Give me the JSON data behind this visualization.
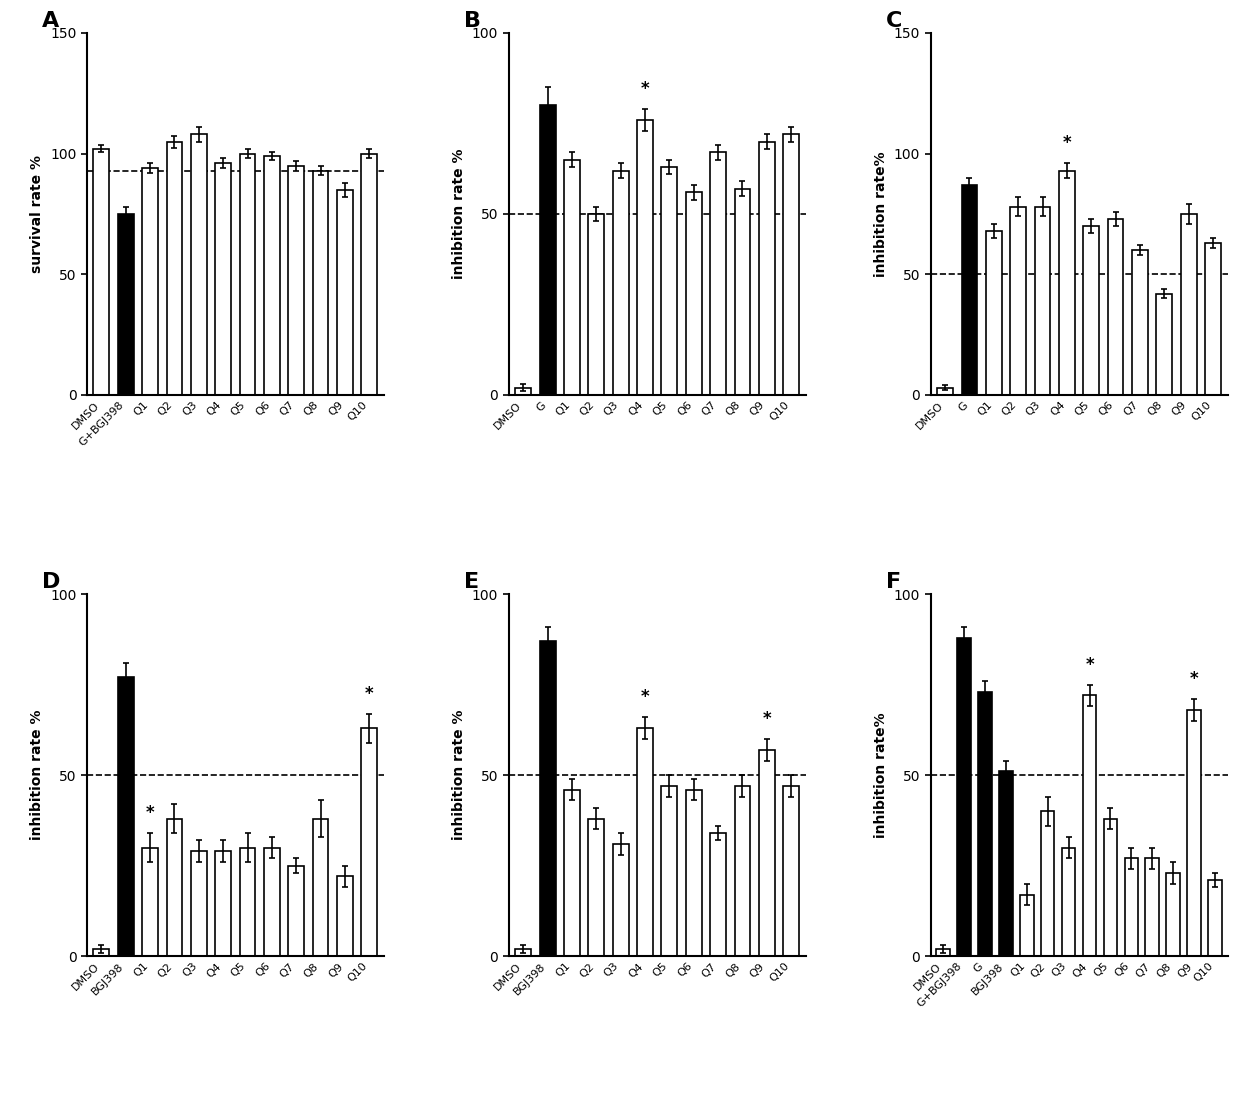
{
  "panels": {
    "A": {
      "label": "A",
      "ylabel": "survival rate %",
      "ylim": [
        0,
        150
      ],
      "yticks": [
        0,
        50,
        100,
        150
      ],
      "dashed_line": 93,
      "categories": [
        "DMSO",
        "G+BGJ398",
        "Q1",
        "Q2",
        "Q3",
        "Q4",
        "Q5",
        "Q6",
        "Q7",
        "Q8",
        "Q9",
        "Q10"
      ],
      "values": [
        102,
        75,
        94,
        105,
        108,
        96,
        100,
        99,
        95,
        93,
        85,
        100
      ],
      "errors": [
        1.5,
        3.0,
        2.0,
        2.5,
        3.0,
        2.0,
        2.0,
        1.5,
        2.0,
        2.0,
        3.0,
        2.0
      ],
      "colors": [
        "white",
        "black",
        "white",
        "white",
        "white",
        "white",
        "white",
        "white",
        "white",
        "white",
        "white",
        "white"
      ],
      "has_star": [
        false,
        false,
        false,
        false,
        false,
        false,
        false,
        false,
        false,
        false,
        false,
        false
      ]
    },
    "B": {
      "label": "B",
      "ylabel": "inhibition rate %",
      "ylim": [
        0,
        100
      ],
      "yticks": [
        0,
        50,
        100
      ],
      "dashed_line": 50,
      "categories": [
        "DMSO",
        "G",
        "Q1",
        "Q2",
        "Q3",
        "Q4",
        "Q5",
        "Q6",
        "Q7",
        "Q8",
        "Q9",
        "Q10"
      ],
      "values": [
        2,
        80,
        65,
        50,
        62,
        76,
        63,
        56,
        67,
        57,
        70,
        72
      ],
      "errors": [
        1.0,
        5.0,
        2.0,
        2.0,
        2.0,
        3.0,
        2.0,
        2.0,
        2.0,
        2.0,
        2.0,
        2.0
      ],
      "colors": [
        "white",
        "black",
        "white",
        "white",
        "white",
        "white",
        "white",
        "white",
        "white",
        "white",
        "white",
        "white"
      ],
      "has_star": [
        false,
        false,
        false,
        false,
        false,
        true,
        false,
        false,
        false,
        false,
        false,
        false
      ]
    },
    "C": {
      "label": "C",
      "ylabel": "inhibition rate%",
      "ylim": [
        0,
        150
      ],
      "yticks": [
        0,
        50,
        100,
        150
      ],
      "dashed_line": 50,
      "categories": [
        "DMSO",
        "G",
        "Q1",
        "Q2",
        "Q3",
        "Q4",
        "Q5",
        "Q6",
        "Q7",
        "Q8",
        "Q9",
        "Q10"
      ],
      "values": [
        3,
        87,
        68,
        78,
        78,
        93,
        70,
        73,
        60,
        42,
        75,
        63
      ],
      "errors": [
        1.0,
        3.0,
        3.0,
        4.0,
        4.0,
        3.0,
        3.0,
        3.0,
        2.0,
        2.0,
        4.0,
        2.0
      ],
      "colors": [
        "white",
        "black",
        "white",
        "white",
        "white",
        "white",
        "white",
        "white",
        "white",
        "white",
        "white",
        "white"
      ],
      "has_star": [
        false,
        false,
        false,
        false,
        false,
        true,
        false,
        false,
        false,
        false,
        false,
        false
      ]
    },
    "D": {
      "label": "D",
      "ylabel": "inhibition rate %",
      "ylim": [
        0,
        100
      ],
      "yticks": [
        0,
        50,
        100
      ],
      "dashed_line": 50,
      "categories": [
        "DMSO",
        "BGJ398",
        "Q1",
        "Q2",
        "Q3",
        "Q4",
        "Q5",
        "Q6",
        "Q7",
        "Q8",
        "Q9",
        "Q10"
      ],
      "values": [
        2,
        77,
        30,
        38,
        29,
        29,
        30,
        30,
        25,
        38,
        22,
        63
      ],
      "errors": [
        1.0,
        4.0,
        4.0,
        4.0,
        3.0,
        3.0,
        4.0,
        3.0,
        2.0,
        5.0,
        3.0,
        4.0
      ],
      "colors": [
        "white",
        "black",
        "white",
        "white",
        "white",
        "white",
        "white",
        "white",
        "white",
        "white",
        "white",
        "white"
      ],
      "has_star": [
        false,
        false,
        true,
        false,
        false,
        false,
        false,
        false,
        false,
        false,
        false,
        true
      ]
    },
    "E": {
      "label": "E",
      "ylabel": "inhibition rate %",
      "ylim": [
        0,
        100
      ],
      "yticks": [
        0,
        50,
        100
      ],
      "dashed_line": 50,
      "categories": [
        "DMSO",
        "BGJ398",
        "Q1",
        "Q2",
        "Q3",
        "Q4",
        "Q5",
        "Q6",
        "Q7",
        "Q8",
        "Q9",
        "Q10"
      ],
      "values": [
        2,
        87,
        46,
        38,
        31,
        63,
        47,
        46,
        34,
        47,
        57,
        47
      ],
      "errors": [
        1.0,
        4.0,
        3.0,
        3.0,
        3.0,
        3.0,
        3.0,
        3.0,
        2.0,
        3.0,
        3.0,
        3.0
      ],
      "colors": [
        "white",
        "black",
        "white",
        "white",
        "white",
        "white",
        "white",
        "white",
        "white",
        "white",
        "white",
        "white"
      ],
      "has_star": [
        false,
        false,
        false,
        false,
        false,
        true,
        false,
        false,
        false,
        false,
        true,
        false
      ]
    },
    "F": {
      "label": "F",
      "ylabel": "inhibition rate%",
      "ylim": [
        0,
        100
      ],
      "yticks": [
        0,
        50,
        100
      ],
      "dashed_line": 50,
      "categories": [
        "DMSO",
        "G+BGJ398",
        "G",
        "BGJ398",
        "Q1",
        "Q2",
        "Q3",
        "Q4",
        "Q5",
        "Q6",
        "Q7",
        "Q8",
        "Q9",
        "Q10"
      ],
      "values": [
        2,
        88,
        73,
        51,
        17,
        40,
        30,
        72,
        38,
        27,
        27,
        23,
        68,
        21
      ],
      "errors": [
        1.0,
        3.0,
        3.0,
        3.0,
        3.0,
        4.0,
        3.0,
        3.0,
        3.0,
        3.0,
        3.0,
        3.0,
        3.0,
        2.0
      ],
      "colors": [
        "white",
        "black",
        "black",
        "black",
        "white",
        "white",
        "white",
        "white",
        "white",
        "white",
        "white",
        "white",
        "white",
        "white"
      ],
      "has_star": [
        false,
        false,
        false,
        false,
        false,
        false,
        false,
        true,
        false,
        false,
        false,
        false,
        true,
        false
      ]
    }
  },
  "panel_order": [
    "A",
    "B",
    "C",
    "D",
    "E",
    "F"
  ]
}
